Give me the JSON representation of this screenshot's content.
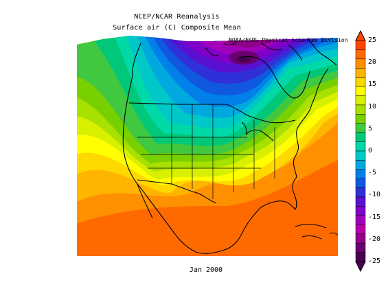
{
  "title": {
    "line1": "NCEP/NCAR Reanalysis",
    "line2": "Surface air (C) Composite Mean",
    "credit": "NOAA/ESRL Physical Sciences Division"
  },
  "caption": "Jan 2000",
  "colorbar": {
    "labels": [
      "25",
      "20",
      "15",
      "10",
      "5",
      "0",
      "-5",
      "-10",
      "-15",
      "-20",
      "-25"
    ],
    "colors": [
      "#ff4400",
      "#ff6a00",
      "#ff9000",
      "#ffb400",
      "#ffd800",
      "#ffff00",
      "#d8f000",
      "#a8e000",
      "#78d000",
      "#40c840",
      "#00c878",
      "#00d8a8",
      "#00c8c8",
      "#00a8e0",
      "#0080e8",
      "#1058e0",
      "#3030d8",
      "#5a10d0",
      "#8000c8",
      "#a000b8",
      "#b800a8",
      "#900088",
      "#6a0070",
      "#4a0050"
    ],
    "range": [
      -25,
      25
    ]
  },
  "map": {
    "region": "North America",
    "variable": "Surface air temperature",
    "units": "C"
  }
}
